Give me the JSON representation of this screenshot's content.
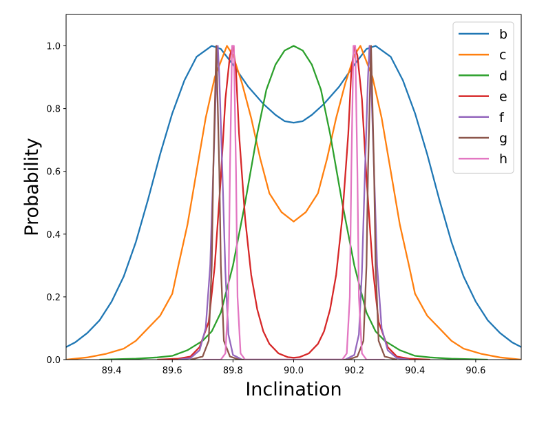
{
  "chart_data": {
    "type": "line",
    "title": "",
    "xlabel": "Inclination",
    "ylabel": "Probability",
    "xlim": [
      89.25,
      90.75
    ],
    "ylim": [
      0.0,
      1.1
    ],
    "xticks": [
      "89.4",
      "89.6",
      "89.8",
      "90.0",
      "90.2",
      "90.4",
      "90.6"
    ],
    "yticks": [
      "0.0",
      "0.2",
      "0.4",
      "0.6",
      "0.8",
      "1.0"
    ],
    "grid": false,
    "legend_position": "top-right",
    "series": [
      {
        "name": "b",
        "color": "#1f77b4",
        "points": [
          [
            89.25,
            0.04
          ],
          [
            89.28,
            0.055
          ],
          [
            89.32,
            0.085
          ],
          [
            89.36,
            0.125
          ],
          [
            89.4,
            0.185
          ],
          [
            89.44,
            0.265
          ],
          [
            89.48,
            0.375
          ],
          [
            89.52,
            0.51
          ],
          [
            89.56,
            0.655
          ],
          [
            89.6,
            0.785
          ],
          [
            89.64,
            0.89
          ],
          [
            89.68,
            0.965
          ],
          [
            89.73,
            1.0
          ],
          [
            89.76,
            0.99
          ],
          [
            89.8,
            0.94
          ],
          [
            89.85,
            0.87
          ],
          [
            89.9,
            0.815
          ],
          [
            89.94,
            0.78
          ],
          [
            89.97,
            0.76
          ],
          [
            90.0,
            0.755
          ],
          [
            90.03,
            0.76
          ],
          [
            90.06,
            0.78
          ],
          [
            90.1,
            0.815
          ],
          [
            90.15,
            0.87
          ],
          [
            90.2,
            0.94
          ],
          [
            90.24,
            0.99
          ],
          [
            90.27,
            1.0
          ],
          [
            90.32,
            0.965
          ],
          [
            90.36,
            0.89
          ],
          [
            90.4,
            0.785
          ],
          [
            90.44,
            0.655
          ],
          [
            90.48,
            0.51
          ],
          [
            90.52,
            0.375
          ],
          [
            90.56,
            0.265
          ],
          [
            90.6,
            0.185
          ],
          [
            90.64,
            0.125
          ],
          [
            90.68,
            0.085
          ],
          [
            90.72,
            0.055
          ],
          [
            90.75,
            0.04
          ]
        ]
      },
      {
        "name": "c",
        "color": "#ff7f0e",
        "points": [
          [
            89.25,
            0.0
          ],
          [
            89.32,
            0.007
          ],
          [
            89.38,
            0.018
          ],
          [
            89.44,
            0.035
          ],
          [
            89.48,
            0.06
          ],
          [
            89.52,
            0.1
          ],
          [
            89.56,
            0.14
          ],
          [
            89.6,
            0.21
          ],
          [
            89.62,
            0.3
          ],
          [
            89.65,
            0.43
          ],
          [
            89.68,
            0.6
          ],
          [
            89.71,
            0.77
          ],
          [
            89.74,
            0.9
          ],
          [
            89.78,
            1.0
          ],
          [
            89.8,
            0.97
          ],
          [
            89.83,
            0.88
          ],
          [
            89.86,
            0.77
          ],
          [
            89.89,
            0.64
          ],
          [
            89.92,
            0.53
          ],
          [
            89.96,
            0.47
          ],
          [
            90.0,
            0.44
          ],
          [
            90.04,
            0.47
          ],
          [
            90.08,
            0.53
          ],
          [
            90.11,
            0.64
          ],
          [
            90.14,
            0.77
          ],
          [
            90.17,
            0.88
          ],
          [
            90.2,
            0.97
          ],
          [
            90.22,
            1.0
          ],
          [
            90.26,
            0.9
          ],
          [
            90.29,
            0.77
          ],
          [
            90.32,
            0.6
          ],
          [
            90.35,
            0.43
          ],
          [
            90.38,
            0.3
          ],
          [
            90.4,
            0.21
          ],
          [
            90.44,
            0.14
          ],
          [
            90.48,
            0.1
          ],
          [
            90.52,
            0.06
          ],
          [
            90.56,
            0.035
          ],
          [
            90.62,
            0.018
          ],
          [
            90.68,
            0.007
          ],
          [
            90.75,
            0.0
          ]
        ]
      },
      {
        "name": "d",
        "color": "#2ca02c",
        "points": [
          [
            89.36,
            0.0
          ],
          [
            89.48,
            0.003
          ],
          [
            89.55,
            0.007
          ],
          [
            89.6,
            0.012
          ],
          [
            89.65,
            0.03
          ],
          [
            89.7,
            0.06
          ],
          [
            89.73,
            0.09
          ],
          [
            89.76,
            0.15
          ],
          [
            89.8,
            0.3
          ],
          [
            89.84,
            0.5
          ],
          [
            89.88,
            0.72
          ],
          [
            89.91,
            0.86
          ],
          [
            89.94,
            0.94
          ],
          [
            89.97,
            0.985
          ],
          [
            90.0,
            1.0
          ],
          [
            90.03,
            0.985
          ],
          [
            90.06,
            0.94
          ],
          [
            90.09,
            0.86
          ],
          [
            90.12,
            0.72
          ],
          [
            90.16,
            0.5
          ],
          [
            90.2,
            0.3
          ],
          [
            90.24,
            0.15
          ],
          [
            90.27,
            0.09
          ],
          [
            90.3,
            0.06
          ],
          [
            90.35,
            0.03
          ],
          [
            90.4,
            0.012
          ],
          [
            90.45,
            0.007
          ],
          [
            90.52,
            0.003
          ],
          [
            90.64,
            0.0
          ]
        ]
      },
      {
        "name": "e",
        "color": "#d62728",
        "points": [
          [
            89.55,
            0.0
          ],
          [
            89.62,
            0.003
          ],
          [
            89.66,
            0.01
          ],
          [
            89.69,
            0.04
          ],
          [
            89.72,
            0.12
          ],
          [
            89.74,
            0.3
          ],
          [
            89.76,
            0.58
          ],
          [
            89.775,
            0.83
          ],
          [
            89.79,
            0.97
          ],
          [
            89.8,
            1.0
          ],
          [
            89.81,
            0.92
          ],
          [
            89.82,
            0.72
          ],
          [
            89.84,
            0.45
          ],
          [
            89.86,
            0.27
          ],
          [
            89.88,
            0.16
          ],
          [
            89.9,
            0.09
          ],
          [
            89.92,
            0.05
          ],
          [
            89.95,
            0.02
          ],
          [
            89.98,
            0.008
          ],
          [
            90.0,
            0.006
          ],
          [
            90.02,
            0.008
          ],
          [
            90.05,
            0.02
          ],
          [
            90.08,
            0.05
          ],
          [
            90.1,
            0.09
          ],
          [
            90.12,
            0.16
          ],
          [
            90.14,
            0.27
          ],
          [
            90.16,
            0.45
          ],
          [
            90.18,
            0.72
          ],
          [
            90.19,
            0.92
          ],
          [
            90.2,
            1.0
          ],
          [
            90.21,
            0.97
          ],
          [
            90.225,
            0.83
          ],
          [
            90.24,
            0.58
          ],
          [
            90.26,
            0.3
          ],
          [
            90.28,
            0.12
          ],
          [
            90.31,
            0.04
          ],
          [
            90.34,
            0.01
          ],
          [
            90.38,
            0.003
          ],
          [
            90.45,
            0.0
          ]
        ]
      },
      {
        "name": "f",
        "color": "#9467bd",
        "points": [
          [
            89.62,
            0.0
          ],
          [
            89.66,
            0.005
          ],
          [
            89.69,
            0.03
          ],
          [
            89.71,
            0.1
          ],
          [
            89.725,
            0.3
          ],
          [
            89.735,
            0.6
          ],
          [
            89.745,
            0.9
          ],
          [
            89.75,
            1.0
          ],
          [
            89.755,
            0.9
          ],
          [
            89.765,
            0.6
          ],
          [
            89.775,
            0.28
          ],
          [
            89.785,
            0.08
          ],
          [
            89.8,
            0.015
          ],
          [
            89.83,
            0.0
          ],
          [
            90.17,
            0.0
          ],
          [
            90.2,
            0.015
          ],
          [
            90.215,
            0.08
          ],
          [
            90.225,
            0.28
          ],
          [
            90.235,
            0.6
          ],
          [
            90.245,
            0.9
          ],
          [
            90.25,
            1.0
          ],
          [
            90.255,
            0.9
          ],
          [
            90.265,
            0.6
          ],
          [
            90.275,
            0.3
          ],
          [
            90.29,
            0.1
          ],
          [
            90.31,
            0.03
          ],
          [
            90.34,
            0.005
          ],
          [
            90.38,
            0.0
          ]
        ]
      },
      {
        "name": "g",
        "color": "#8c564b",
        "points": [
          [
            89.66,
            0.0
          ],
          [
            89.7,
            0.01
          ],
          [
            89.72,
            0.06
          ],
          [
            89.73,
            0.3
          ],
          [
            89.735,
            0.6
          ],
          [
            89.745,
            1.0
          ],
          [
            89.755,
            0.6
          ],
          [
            89.76,
            0.3
          ],
          [
            89.77,
            0.06
          ],
          [
            89.79,
            0.01
          ],
          [
            89.82,
            0.0
          ],
          [
            90.18,
            0.0
          ],
          [
            90.21,
            0.01
          ],
          [
            90.23,
            0.06
          ],
          [
            90.24,
            0.3
          ],
          [
            90.245,
            0.6
          ],
          [
            90.255,
            1.0
          ],
          [
            90.265,
            0.6
          ],
          [
            90.27,
            0.3
          ],
          [
            90.28,
            0.06
          ],
          [
            90.3,
            0.01
          ],
          [
            90.34,
            0.0
          ]
        ]
      },
      {
        "name": "h",
        "color": "#e377c2",
        "points": [
          [
            89.7,
            0.0
          ],
          [
            89.76,
            0.0
          ],
          [
            89.775,
            0.02
          ],
          [
            89.785,
            0.2
          ],
          [
            89.79,
            0.6
          ],
          [
            89.797,
            1.0
          ],
          [
            89.803,
            1.0
          ],
          [
            89.81,
            0.6
          ],
          [
            89.815,
            0.2
          ],
          [
            89.825,
            0.02
          ],
          [
            89.84,
            0.0
          ],
          [
            90.16,
            0.0
          ],
          [
            90.175,
            0.02
          ],
          [
            90.185,
            0.2
          ],
          [
            90.19,
            0.6
          ],
          [
            90.197,
            1.0
          ],
          [
            90.203,
            1.0
          ],
          [
            90.21,
            0.6
          ],
          [
            90.215,
            0.2
          ],
          [
            90.225,
            0.02
          ],
          [
            90.24,
            0.0
          ],
          [
            90.3,
            0.0
          ]
        ]
      }
    ]
  }
}
